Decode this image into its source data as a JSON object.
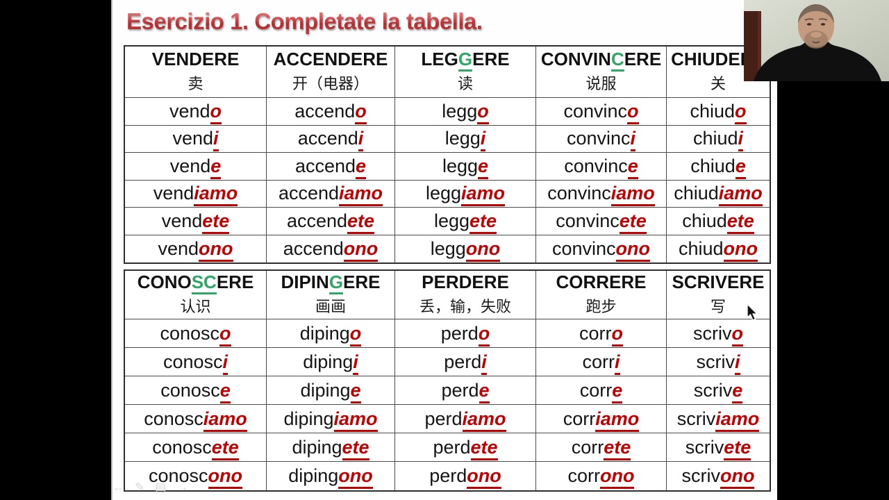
{
  "title": "Esercizio 1. Completate la tabella.",
  "colors": {
    "title_red": "#c43b3e",
    "ending_red": "#c00000",
    "highlight_green": "#2ea866",
    "table_border": "#2e2e2e",
    "letterbox": "#000000"
  },
  "sections": [
    {
      "headers": [
        {
          "pre": "VENDERE",
          "green": "",
          "post": "",
          "zh": "卖"
        },
        {
          "pre": "ACCENDERE",
          "green": "",
          "post": "",
          "zh": "开（电器）"
        },
        {
          "pre": "LEG",
          "green": "G",
          "post": "ERE",
          "zh": "读"
        },
        {
          "pre": "CONVIN",
          "green": "C",
          "post": "ERE",
          "zh": "说服"
        },
        {
          "pre": "CHIUDERE",
          "green": "",
          "post": "",
          "zh": "关"
        }
      ],
      "stems": [
        "vend",
        "accend",
        "legg",
        "convinc",
        "chiud"
      ],
      "endings": [
        "o",
        "i",
        "e",
        "iamo",
        "ete",
        "ono"
      ]
    },
    {
      "headers": [
        {
          "pre": "CONO",
          "green": "SC",
          "post": "ERE",
          "zh": "认识"
        },
        {
          "pre": "DIPIN",
          "green": "G",
          "post": "ERE",
          "zh": "画画"
        },
        {
          "pre": "PERDERE",
          "green": "",
          "post": "",
          "zh": "丢，输，失败"
        },
        {
          "pre": "CORRERE",
          "green": "",
          "post": "",
          "zh": "跑步"
        },
        {
          "pre": "SCRIVERE",
          "green": "",
          "post": "",
          "zh": "写"
        }
      ],
      "stems": [
        "conosc",
        "diping",
        "perd",
        "corr",
        "scriv"
      ],
      "endings": [
        "o",
        "i",
        "e",
        "iamo",
        "ete",
        "ono"
      ]
    }
  ],
  "presenter_controls": [
    {
      "icon": "prev-arrow-icon",
      "glyph": "←"
    },
    {
      "icon": "pen-icon",
      "glyph": "✎"
    },
    {
      "icon": "slide-menu-icon",
      "glyph": "▤"
    },
    {
      "icon": "next-arrow-icon",
      "glyph": "→"
    }
  ]
}
